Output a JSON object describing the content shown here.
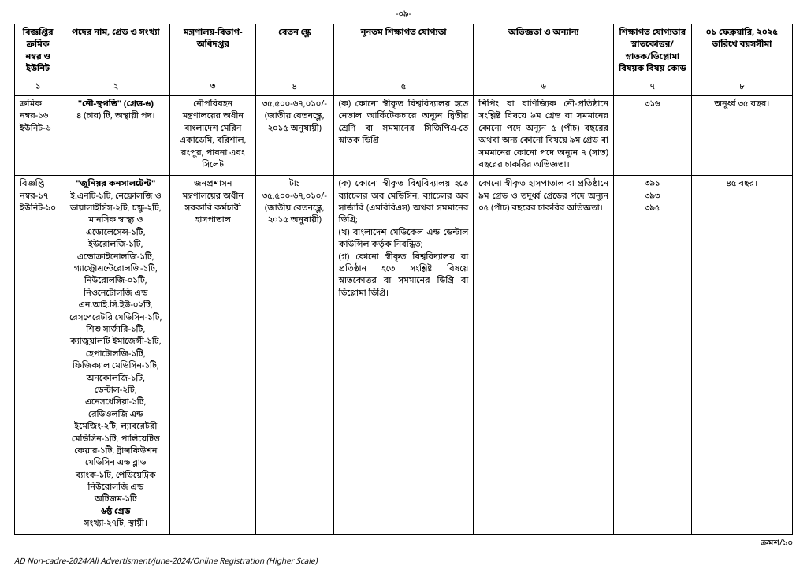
{
  "page_number": "-০৯-",
  "headers": {
    "c1": "বিজ্ঞপ্তির ক্রমিক নম্বর ও ইউনিট",
    "c2": "পদের নাম, গ্রেড ও সংখ্যা",
    "c3": "মন্ত্রণালয়-বিভাগ-অধিদপ্তর",
    "c4": "বেতন স্কেল",
    "c5": "নূনতম শিক্ষাগত যোগ্যতা",
    "c6": "অভিজ্ঞতা ও অন্যান্য",
    "c7": "শিক্ষাগত যোগ্যতার স্নাতকোত্তর/স্নাতক/ডিপ্লোমা বিষয়ক বিষয় কোড",
    "c8": "০১ ফেব্রুয়ারি, ২০২৫ তারিখে বয়সসীমা"
  },
  "numrow": {
    "c1": "১",
    "c2": "২",
    "c3": "৩",
    "c4": "৪",
    "c5": "৫",
    "c6": "৬",
    "c7": "৭",
    "c8": "৮"
  },
  "row1": {
    "c1": "ক্রমিক নম্বর-১৬ ইউনিট-৬",
    "c2_title": "\"নৌ-স্থপতি\" (গ্রেড-৬)",
    "c2_rest": "৪ (চার) টি, অস্থায়ী পদ।",
    "c3": "নৌপরিবহন মন্ত্রণালয়ের অধীন বাংলাদেশ মেরিন একাডেমি, বরিশাল, রংপুর, পাবনা এবং সিলেট",
    "c4": "৩৫,৫০০-৬৭,০১০/- (জাতীয় বেতনস্কেল, ২০১৫ অনুযায়ী)",
    "c5": "(ক) কোনো স্বীকৃত বিশ্ববিদ্যালয় হতে নেভাল আর্কিটেকচারে অন্যূন দ্বিতীয় শ্রেণি বা সমমানের সিজিপিএ-তে স্নাতক ডিগ্রি",
    "c6": "শিপিং বা বাণিজ্যিক নৌ-প্রতিষ্ঠানে সংশ্লিষ্ট বিষয়ে ৯ম গ্রেড বা সমমানের কোনো পদে অন্যূন ৫ (পাঁচ) বছরের অথবা অন্য কোনো বিষয়ে ৯ম গ্রেড বা সমমানের কোনো পদে অন্যূন ৭ (সাত) বছরের চাকরির অভিজ্ঞতা।",
    "c7": "৩১৬",
    "c8": "অনূর্ধ্ব ৩৫ বছর।"
  },
  "row2": {
    "c1": "বিজ্ঞপ্তি নম্বর-১৭ ইউনিট-১০",
    "c2_title": "\"জুনিয়র কনসালটেন্ট\"",
    "c2_list": "ই.এনটি-১টি, নেফ্রোলজি ও ডায়ালাইসিস-২টি, চক্ষু-২টি, মানসিক স্বাস্থ্য ও এডোলেসেন্স-১টি, ইউরোলজি-১টি, এন্ডোক্রাইনোলজি-১টি, গ্যাস্ট্রোএন্টেরোলজি-১টি, নিউরোলজি-০১টি, নিওনেটোলজি এন্ড এন.আই.সি.ইউ-০২টি, রেসপেরেটরি মেডিসিন-১টি, শিশু সার্জারি-১টি, ক্যাজুয়ালটি ইমাজেন্সী-১টি, হেপাটোলজি-১টি, ফিজিক্যাল মেডিসিন-১টি, অনকোলজি-১টি, ডেন্টাল-২টি, এনেসথেসিয়া-১টি, রেডিওলজি এন্ড ইমেজিং-২টি, ল্যাবরেটরী মেডিসিন-১টি, পালিয়েটিভ কেয়ার-১টি, ট্রান্সফিউশন মেডিসিন এন্ড ব্লাড ব্যাংক-১টি, পেডিয়েট্রিক নিউরোলজি এন্ড অটিজম-১টি",
    "c2_grade": "৬ষ্ঠ গ্রেড",
    "c2_count": "সংখ্যা-২৭টি, স্থায়ী।",
    "c3": "জনপ্রশাসন মন্ত্রণালয়ের অধীন সরকারি কর্মচারী হাসপাতাল",
    "c4": "টাঃ ৩৫,৫০০-৬৭,০১০/- (জাতীয় বেতনস্কেল, ২০১৫ অনুযায়ী)",
    "c5": "(ক) কোনো স্বীকৃত বিশ্ববিদ্যালয় হতে ব্যাচেলর অব মেডিসিন, ব্যাচেলর অব সার্জারি (এমবিবিএস) অথবা সমমানের ডিগ্রি;\n(খ) বাংলাদেশ মেডিকেল এন্ড ডেন্টাল কাউন্সিল কর্তৃক নিবন্ধিত;\n(গ) কোনো স্বীকৃত বিশ্ববিদ্যালয় বা প্রতিষ্ঠান হতে সংশ্লিষ্ট বিষয়ে স্নাতকোত্তর বা সমমানের ডিগ্রি বা ডিপ্লোমা ডিগ্রি।",
    "c6": "কোনো স্বীকৃত হাসপাতাল বা প্রতিষ্ঠানে ৯ম গ্রেড ও তদূর্ধ্ব গ্রেডের পদে অন্যূন ০৫ (পাঁচ) বছরের চাকরির অভিজ্ঞতা।",
    "c7": "৩৯১\n৩৯৩\n৩৯৫",
    "c8": "৪৫ বছর।"
  },
  "footer_right": "ক্রমশ/১০",
  "footer_left": "AD Non-cadre-2024/All Advertisment/june-2024/Online Registration (Higher Scale)"
}
